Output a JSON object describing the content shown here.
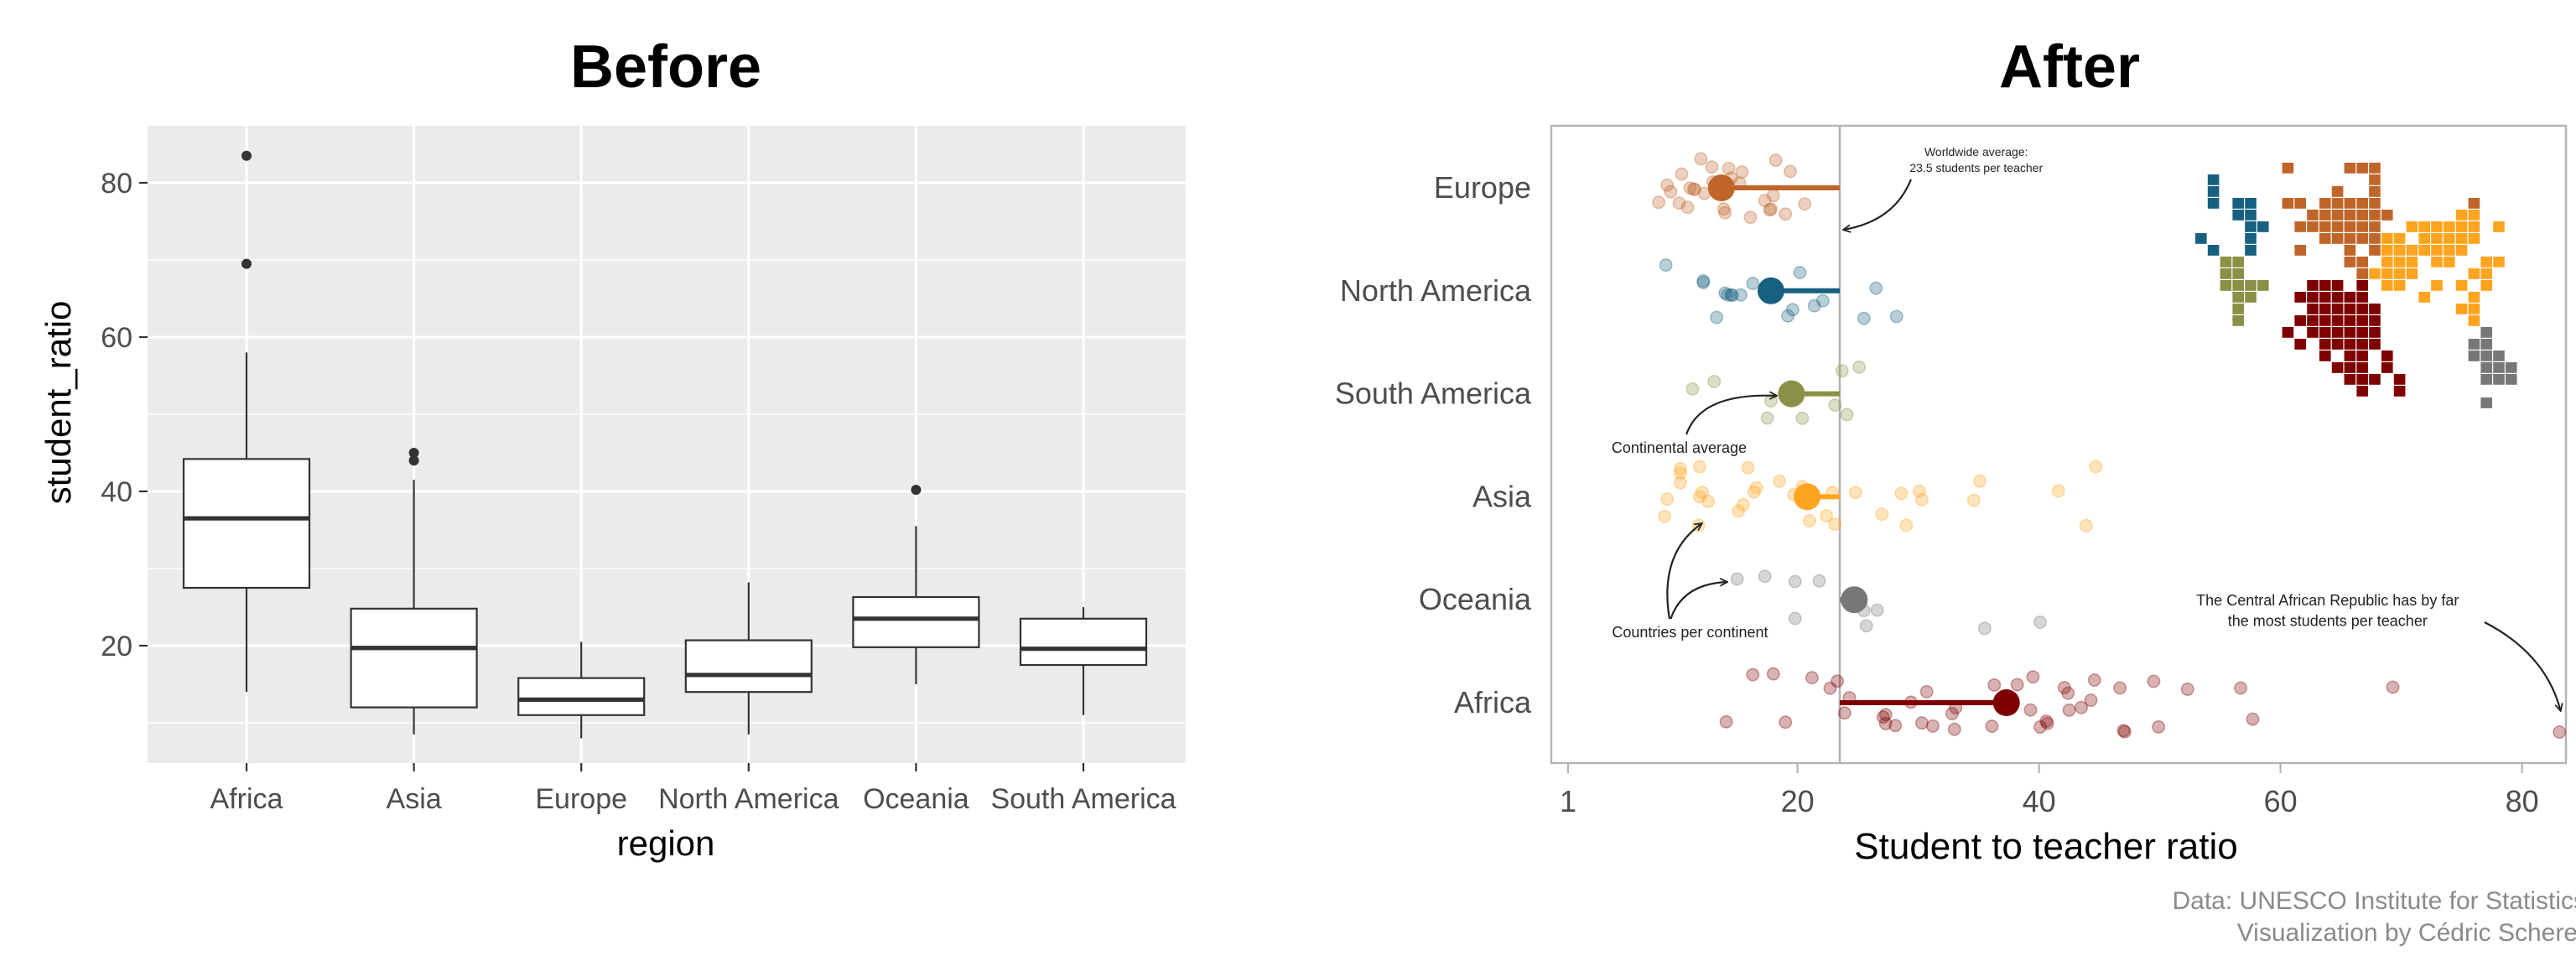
{
  "chart_data": [
    {
      "type": "box",
      "title": "Before",
      "xlabel": "region",
      "ylabel": "student_ratio",
      "ylim": [
        5,
        88
      ],
      "yticks": [
        20,
        40,
        60,
        80
      ],
      "grid": true,
      "categories": [
        "Africa",
        "Asia",
        "Europe",
        "North America",
        "Oceania",
        "South America"
      ],
      "boxes": [
        {
          "lower": 14,
          "q1": 27.5,
          "median": 36.5,
          "q3": 44.2,
          "upper": 58,
          "outliers": [
            69.5,
            83.5
          ]
        },
        {
          "lower": 8.5,
          "q1": 12,
          "median": 19.7,
          "q3": 24.8,
          "upper": 41.5,
          "outliers": [
            44,
            45
          ]
        },
        {
          "lower": 8,
          "q1": 11,
          "median": 13,
          "q3": 15.8,
          "upper": 20.5,
          "outliers": []
        },
        {
          "lower": 8.5,
          "q1": 14,
          "median": 16.2,
          "q3": 20.7,
          "upper": 28.2,
          "outliers": []
        },
        {
          "lower": 15,
          "q1": 19.8,
          "median": 23.5,
          "q3": 26.3,
          "upper": 35.5,
          "outliers": [
            40.2
          ]
        },
        {
          "lower": 11,
          "q1": 17.5,
          "median": 19.6,
          "q3": 23.5,
          "upper": 25,
          "outliers": []
        }
      ]
    },
    {
      "type": "scatter",
      "title": "After",
      "xlabel": "Student to teacher ratio",
      "xlim": [
        0,
        85
      ],
      "xticks": [
        1,
        20,
        40,
        60,
        80
      ],
      "grid": false,
      "worldwide_average": 23.5,
      "series": [
        {
          "name": "Europe",
          "color": "#c0652a",
          "average": 13.7,
          "values": [
            8.5,
            9.5,
            9.2,
            10.4,
            10.9,
            10.2,
            11.1,
            11.5,
            11.4,
            12.0,
            12.3,
            13.5,
            13.0,
            13.9,
            14.5,
            15.2,
            15.4,
            16.1,
            17.3,
            17.7,
            17.8,
            18.2,
            18.0,
            19.0,
            19.4,
            20.6,
            12.9,
            14.0,
            14.3
          ]
        },
        {
          "name": "North America",
          "color": "#17607f",
          "average": 17.8,
          "values": [
            9.1,
            12.2,
            12.2,
            13.3,
            14.0,
            14.5,
            14.2,
            14.6,
            15.3,
            16.3,
            19.2,
            19.6,
            20.2,
            21.4,
            22.1,
            25.5,
            26.5,
            28.2
          ]
        },
        {
          "name": "South America",
          "color": "#8a9146",
          "average": 19.5,
          "values": [
            11.3,
            13.1,
            17.5,
            17.8,
            20.4,
            23.1,
            23.7,
            24.1,
            25.1
          ]
        },
        {
          "name": "Asia",
          "color": "#ffa41f",
          "average": 20.8,
          "values": [
            9.0,
            9.2,
            10.3,
            10.3,
            10.3,
            11.8,
            12.1,
            11.9,
            11.9,
            12.6,
            15.1,
            15.5,
            15.9,
            16.4,
            16.6,
            18.5,
            19.7,
            20.4,
            21.0,
            22.4,
            22.9,
            23.1,
            24.8,
            27.0,
            28.6,
            29.0,
            30.1,
            30.3,
            34.6,
            35.1,
            41.6,
            43.9,
            44.7
          ]
        },
        {
          "name": "Oceania",
          "color": "#777777",
          "average": 24.7,
          "values": [
            15.0,
            17.3,
            19.8,
            19.8,
            21.8,
            25.5,
            25.7,
            26.6,
            35.5,
            40.1
          ]
        },
        {
          "name": "Africa",
          "color": "#7f0000",
          "average": 37.3,
          "values": [
            14.1,
            16.3,
            18.0,
            19.0,
            21.2,
            22.7,
            23.3,
            23.9,
            24.3,
            27.1,
            27.3,
            27.3,
            28.1,
            29.4,
            30.3,
            30.7,
            31.2,
            32.8,
            33.0,
            33.1,
            36.1,
            36.3,
            38.2,
            39.3,
            39.5,
            40.1,
            40.6,
            40.7,
            42.1,
            42.4,
            42.5,
            43.5,
            44.3,
            44.6,
            46.7,
            47.0,
            47.1,
            49.5,
            49.9,
            52.3,
            56.7,
            57.7,
            69.3,
            83.1
          ]
        }
      ],
      "annotations": [
        {
          "lines": [
            "Worldwide average:",
            "23.5 students per teacher"
          ]
        },
        {
          "lines": [
            "Continental average"
          ]
        },
        {
          "lines": [
            "Countries per continent"
          ]
        },
        {
          "lines": [
            "The Central African Republic has by far",
            "the most students per teacher"
          ]
        }
      ]
    }
  ],
  "inset_map": {
    "colors": {
      "B": "#17607f",
      "O": "#c0652a",
      "Y": "#ffa41f",
      "G": "#8a9146",
      "R": "#7f0000",
      "K": "#777777"
    },
    "rows": [
      ".......O....OOO...........",
      ".B............O...........",
      ".B.........O..O...........",
      ".B.BB..OO.OOOOO.......O...",
      "...BB....OOOOOOO.....YY...",
      "....BB..OOOOOOO..YYYYYY.Y.",
      "B...B.....OOOOOYY.YYYYY...",
      ".B..B...O...O.OYYYYYYY....",
      "..GG........OO.YYY.YY..YY.",
      "..GG.........OYYYY....YY..",
      "..GGGG...RRR.R.YY..Y.Y.Y..",
      "...GG...RRRRRR....Y...Y...",
      "...G.....RRRRRR......YY...",
      "...G....RRRRRRR.......Y...",
      ".......R.RRRRRR........K..",
      "........R.RRRRR.......KK..",
      "..........R.RR.R......KKK.",
      "...........RRR.R.......KKK",
      "............RRR.R......KKK",
      ".............R..R.........",
      ".......................K.."
    ]
  },
  "caption": {
    "data_source": "Data: UNESCO Institute for Statistics",
    "credit": "Visualization by Cédric Scherer"
  }
}
